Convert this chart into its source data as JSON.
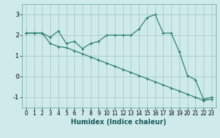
{
  "title": "",
  "xlabel": "Humidex (Indice chaleur)",
  "ylabel": "",
  "x_data": [
    0,
    1,
    2,
    3,
    4,
    5,
    6,
    7,
    8,
    9,
    10,
    11,
    12,
    13,
    14,
    15,
    16,
    17,
    18,
    19,
    20,
    21,
    22,
    23
  ],
  "y_line1": [
    2.1,
    2.1,
    2.1,
    1.9,
    2.2,
    1.6,
    1.7,
    1.35,
    1.6,
    1.7,
    2.0,
    2.0,
    2.0,
    2.0,
    2.3,
    2.85,
    3.0,
    2.1,
    2.1,
    1.2,
    0.05,
    -0.15,
    -1.1,
    -1.0
  ],
  "y_line2": [
    2.1,
    2.1,
    2.1,
    1.6,
    1.45,
    1.4,
    1.25,
    1.1,
    0.95,
    0.8,
    0.65,
    0.5,
    0.35,
    0.2,
    0.05,
    -0.1,
    -0.25,
    -0.4,
    -0.55,
    -0.7,
    -0.85,
    -1.0,
    -1.15,
    -1.1
  ],
  "color": "#2d7d6e",
  "bg_color": "#ceeaea",
  "grid_color": "#aacece",
  "ylim": [
    -1.5,
    3.5
  ],
  "xlim": [
    -0.5,
    23.5
  ],
  "yticks": [
    -1,
    0,
    1,
    2,
    3
  ],
  "xticks": [
    0,
    1,
    2,
    3,
    4,
    5,
    6,
    7,
    8,
    9,
    10,
    11,
    12,
    13,
    14,
    15,
    16,
    17,
    18,
    19,
    20,
    21,
    22,
    23
  ]
}
